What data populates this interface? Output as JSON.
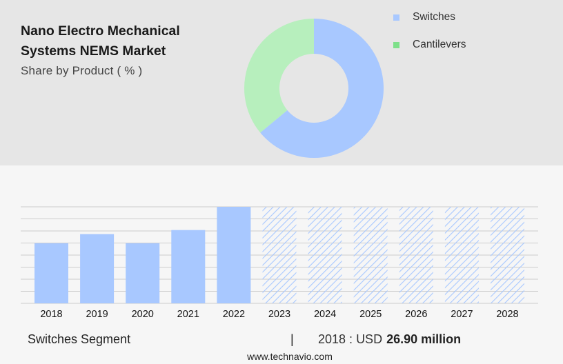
{
  "header": {
    "title": "Nano Electro Mechanical Systems NEMS Market",
    "subtitle": "Share by Product ( % )"
  },
  "colors": {
    "switches": "#a8c8ff",
    "cantilevers": "#b7efbd",
    "cantilevers_legend": "#7ee08a",
    "forecast_hatch": "#a8c8ff",
    "gridline": "#cccccc"
  },
  "chart_data": [
    {
      "type": "pie",
      "title": "Share by Product ( % )",
      "donut": true,
      "legend_position": "right",
      "categories": [
        "Switches",
        "Cantilevers"
      ],
      "values": [
        64,
        36
      ]
    },
    {
      "type": "bar",
      "categories": [
        "2018",
        "2019",
        "2020",
        "2021",
        "2022",
        "2023",
        "2024",
        "2025",
        "2026",
        "2027",
        "2028"
      ],
      "values": [
        26.9,
        31.0,
        26.9,
        32.8,
        43.2,
        43.2,
        43.2,
        43.2,
        43.2,
        43.2,
        43.2
      ],
      "forecast_from": "2023",
      "ylim": [
        0,
        43.2
      ],
      "grid": true,
      "yaxis_labels": false
    }
  ],
  "footer": {
    "segment_label": "Switches Segment",
    "divider": "|",
    "year": "2018",
    "separator": ":",
    "currency": "USD",
    "amount": "26.90 million",
    "website": "www.technavio.com"
  }
}
